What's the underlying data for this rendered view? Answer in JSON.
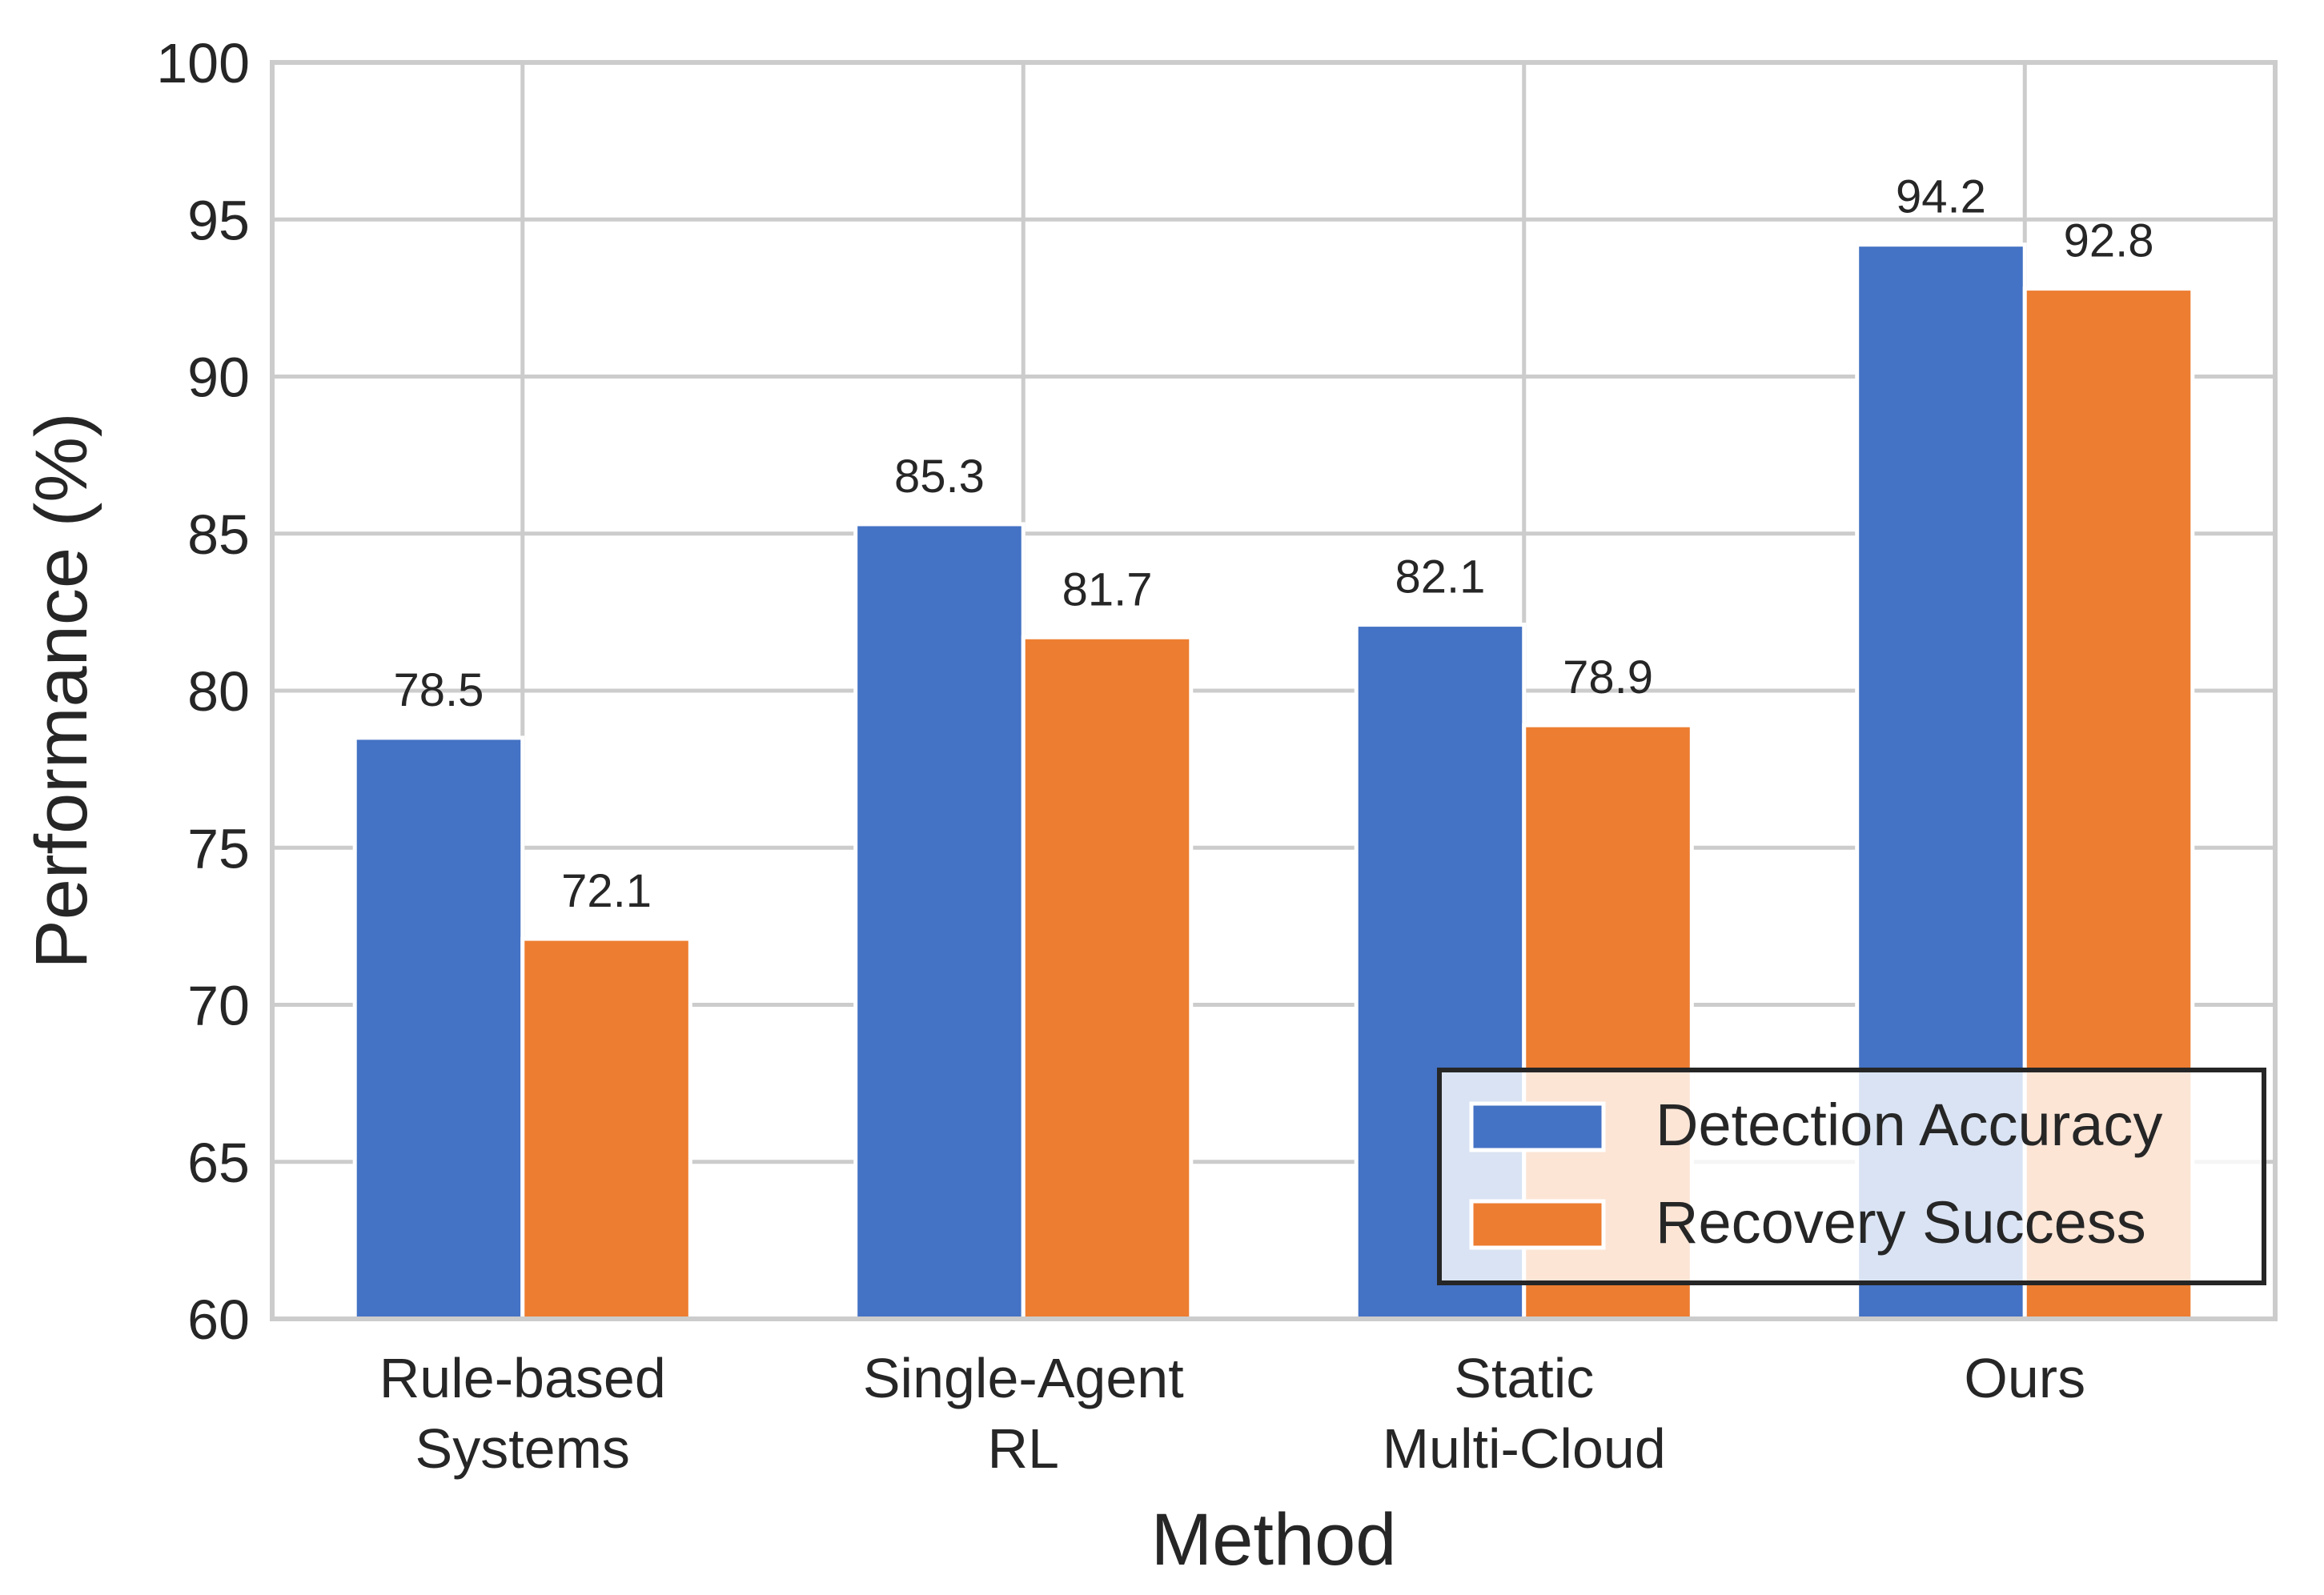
{
  "chart_data": {
    "type": "bar",
    "categories": [
      [
        "Rule-based",
        "Systems"
      ],
      [
        "Single-Agent",
        "RL"
      ],
      [
        "Static",
        "Multi-Cloud"
      ],
      [
        "Ours"
      ]
    ],
    "series": [
      {
        "name": "Detection Accuracy",
        "color": "#4472c4",
        "values": [
          78.5,
          85.3,
          82.1,
          94.2
        ]
      },
      {
        "name": "Recovery Success",
        "color": "#ed7d31",
        "values": [
          72.1,
          81.7,
          78.9,
          92.8
        ]
      }
    ],
    "ylabel": "Performance (%)",
    "xlabel": "Method",
    "ylim": [
      60,
      100
    ],
    "yticks": [
      60,
      65,
      70,
      75,
      80,
      85,
      90,
      95,
      100
    ],
    "grid": true,
    "legend_position": "lower-right"
  }
}
